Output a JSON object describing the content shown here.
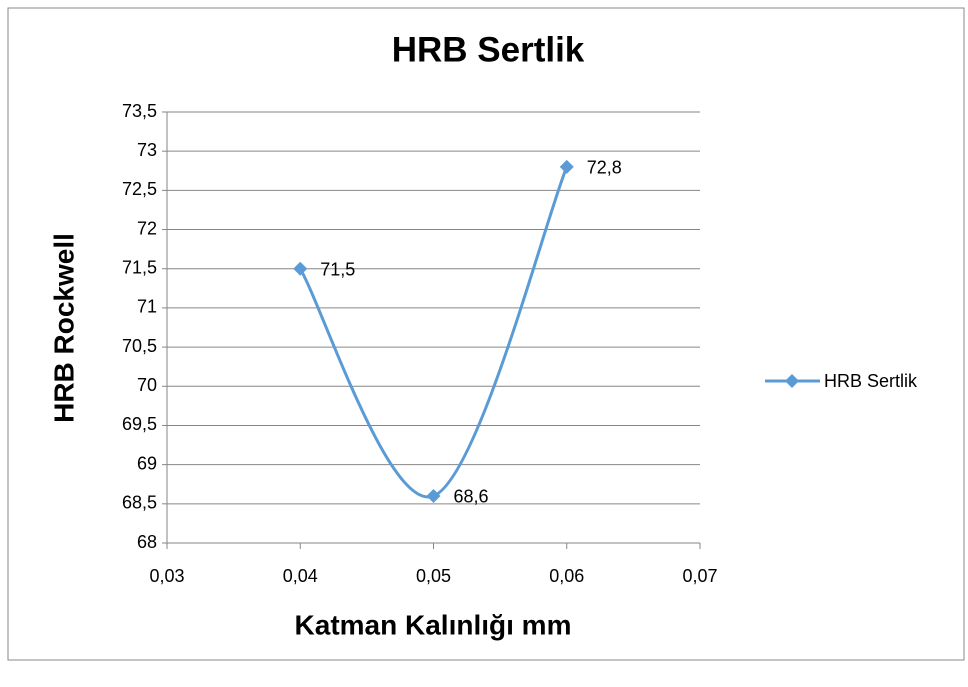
{
  "chart_data": {
    "type": "scatter",
    "title": "HRB Sertlik",
    "x_label": "Katman Kalınlığı mm",
    "y_label": "HRB Rockwell",
    "x": [
      0.04,
      0.05,
      0.06
    ],
    "series": [
      {
        "name": "HRB Sertlik",
        "color": "#5b9bd5",
        "values": [
          71.5,
          68.6,
          72.8
        ],
        "value_labels": [
          "71,5",
          "68,6",
          "72,8"
        ]
      }
    ],
    "xlim": [
      0.03,
      0.07
    ],
    "xticks": [
      {
        "value": 0.03,
        "label": "0,03"
      },
      {
        "value": 0.04,
        "label": "0,04"
      },
      {
        "value": 0.05,
        "label": "0,05"
      },
      {
        "value": 0.06,
        "label": "0,06"
      },
      {
        "value": 0.07,
        "label": "0,07"
      }
    ],
    "ylim": [
      68,
      73.5
    ],
    "yticks": [
      68,
      {
        "value": 68.5,
        "label": "68,5"
      },
      69,
      {
        "value": 69.5,
        "label": "69,5"
      },
      70,
      {
        "value": 70.5,
        "label": "70,5"
      },
      71,
      {
        "value": 71.5,
        "label": "71,5"
      },
      72,
      {
        "value": 72.5,
        "label": "72,5"
      },
      73,
      {
        "value": 73.5,
        "label": "73,5"
      }
    ],
    "grid": true,
    "smooth": true,
    "legend": "right"
  }
}
